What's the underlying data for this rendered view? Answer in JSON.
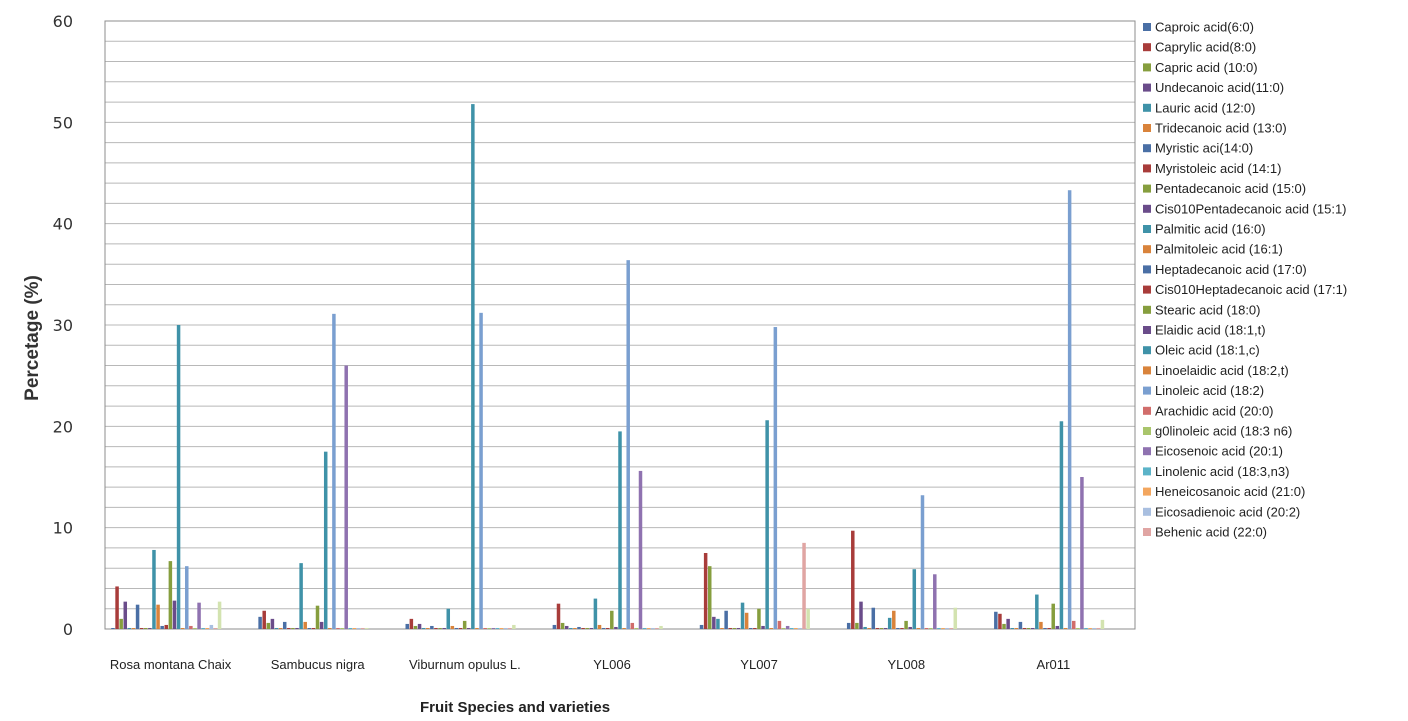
{
  "chart_data": {
    "type": "bar",
    "ylabel": "Percetage (%)",
    "xlabel": "Fruit Species and varieties",
    "ylim": [
      0,
      60
    ],
    "yticks": [
      0,
      10,
      20,
      30,
      40,
      50,
      60
    ],
    "grid": "horizontal",
    "legend_position": "right",
    "categories": [
      "Rosa montana Chaix",
      "Sambucus nigra",
      "Viburnum opulus L.",
      "YL006",
      "YL007",
      "YL008",
      "Ar011"
    ],
    "series": [
      {
        "name": "Caproic acid(6:0)",
        "color": "#4a6fa5",
        "values": [
          0.1,
          1.2,
          0.5,
          0.4,
          0.4,
          0.6,
          1.7
        ]
      },
      {
        "name": "Caprylic acid(8:0)",
        "color": "#a83c3a",
        "values": [
          4.2,
          1.8,
          1.0,
          2.5,
          7.5,
          9.7,
          1.5
        ]
      },
      {
        "name": "Capric acid (10:0)",
        "color": "#869e3e",
        "values": [
          1.0,
          0.6,
          0.3,
          0.6,
          6.2,
          0.6,
          0.5
        ]
      },
      {
        "name": "Undecanoic acid(11:0)",
        "color": "#6a4c8a",
        "values": [
          2.7,
          1.0,
          0.5,
          0.3,
          1.2,
          2.7,
          1.0
        ]
      },
      {
        "name": "Lauric acid (12:0)",
        "color": "#3f92a8",
        "values": [
          0.1,
          0.1,
          0.1,
          0.1,
          1.0,
          0.2,
          0.1
        ]
      },
      {
        "name": "Tridecanoic acid (13:0)",
        "color": "#d9833b",
        "values": [
          0.1,
          0.1,
          0.1,
          0.1,
          0.1,
          0.1,
          0.1
        ]
      },
      {
        "name": "Myristic aci(14:0)",
        "color": "#4a6fa5",
        "values": [
          2.4,
          0.7,
          0.3,
          0.2,
          1.8,
          2.1,
          0.7
        ]
      },
      {
        "name": "Myristoleic acid (14:1)",
        "color": "#a83c3a",
        "values": [
          0.1,
          0.1,
          0.1,
          0.1,
          0.1,
          0.1,
          0.1
        ]
      },
      {
        "name": "Pentadecanoic acid (15:0)",
        "color": "#869e3e",
        "values": [
          0.1,
          0.1,
          0.1,
          0.1,
          0.1,
          0.1,
          0.1
        ]
      },
      {
        "name": "Cis010Pentadecanoic acid (15:1)",
        "color": "#6a4c8a",
        "values": [
          0.1,
          0.1,
          0.1,
          0.1,
          0.1,
          0.1,
          0.1
        ]
      },
      {
        "name": "Palmitic acid (16:0)",
        "color": "#3f92a8",
        "values": [
          7.8,
          6.5,
          2.0,
          3.0,
          2.6,
          1.1,
          3.4
        ]
      },
      {
        "name": "Palmitoleic acid (16:1)",
        "color": "#d9833b",
        "values": [
          2.4,
          0.7,
          0.3,
          0.4,
          1.6,
          1.8,
          0.7
        ]
      },
      {
        "name": "Heptadecanoic acid (17:0)",
        "color": "#4a6fa5",
        "values": [
          0.3,
          0.1,
          0.1,
          0.1,
          0.1,
          0.1,
          0.1
        ]
      },
      {
        "name": "Cis010Heptadecanoic acid (17:1)",
        "color": "#a83c3a",
        "values": [
          0.4,
          0.1,
          0.1,
          0.1,
          0.1,
          0.1,
          0.1
        ]
      },
      {
        "name": "Stearic acid (18:0)",
        "color": "#869e3e",
        "values": [
          6.7,
          2.3,
          0.8,
          1.8,
          2.0,
          0.8,
          2.5
        ]
      },
      {
        "name": "Elaidic acid (18:1,t)",
        "color": "#6a4c8a",
        "values": [
          2.8,
          0.7,
          0.1,
          0.2,
          0.3,
          0.2,
          0.3
        ]
      },
      {
        "name": "Oleic acid (18:1,c)",
        "color": "#3f92a8",
        "values": [
          30.0,
          17.5,
          51.8,
          19.5,
          20.6,
          5.9,
          20.5
        ]
      },
      {
        "name": "Linoelaidic acid (18:2,t)",
        "color": "#d9833b",
        "values": [
          0.1,
          0.1,
          0.1,
          0.1,
          0.1,
          0.1,
          0.1
        ]
      },
      {
        "name": "Linoleic acid (18:2)",
        "color": "#7a9fd0",
        "values": [
          6.2,
          31.1,
          31.2,
          36.4,
          29.8,
          13.2,
          43.3
        ]
      },
      {
        "name": "Arachidic acid (20:0)",
        "color": "#d16d6b",
        "values": [
          0.3,
          0.1,
          0.1,
          0.6,
          0.8,
          0.1,
          0.8
        ]
      },
      {
        "name": "g0linoleic acid (18:3 n6)",
        "color": "#a9c56b",
        "values": [
          0.1,
          0.1,
          0.1,
          0.1,
          0.1,
          0.1,
          0.1
        ]
      },
      {
        "name": "Eicosenoic acid (20:1)",
        "color": "#8f72b0",
        "values": [
          2.6,
          26.0,
          0.1,
          15.6,
          0.3,
          5.4,
          15.0
        ]
      },
      {
        "name": "Linolenic acid (18:3,n3)",
        "color": "#5bb3c8",
        "values": [
          0.1,
          0.1,
          0.1,
          0.1,
          0.1,
          0.1,
          0.1
        ]
      },
      {
        "name": "Heneicosanoic acid (21:0)",
        "color": "#f3a65e",
        "values": [
          0.1,
          0.1,
          0.1,
          0.1,
          0.1,
          0.1,
          0.1
        ]
      },
      {
        "name": "Eicosadienoic acid (20:2)",
        "color": "#a9bfe0",
        "values": [
          0.4,
          0.1,
          0.1,
          0.1,
          0.1,
          0.1,
          0.1
        ]
      },
      {
        "name": "Behenic acid (22:0)",
        "color": "#e0a5a3",
        "values": [
          0.1,
          0.1,
          0.1,
          0.1,
          8.5,
          0.1,
          0.1
        ]
      },
      {
        "name": "",
        "color": "#d3e3b0",
        "values": [
          2.7,
          0.1,
          0.4,
          0.3,
          2.0,
          2.1,
          0.9
        ]
      }
    ]
  }
}
